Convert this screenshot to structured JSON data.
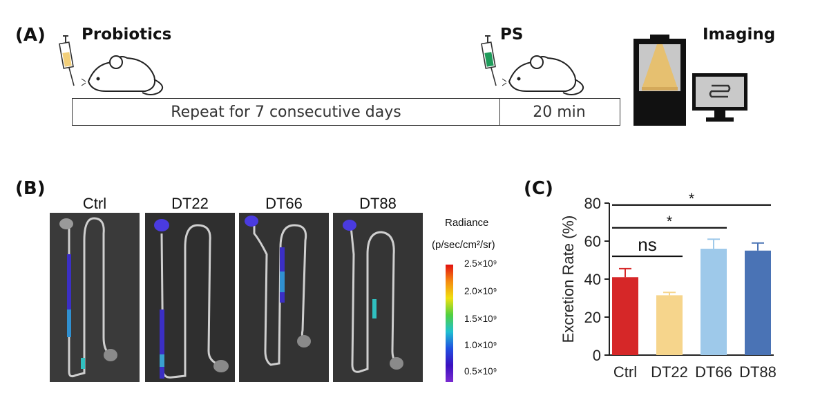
{
  "panel_a": {
    "label": "(A)",
    "steps": {
      "probiotics": "Probiotics",
      "ps": "PS",
      "imaging": "Imaging"
    },
    "timeline": {
      "repeat": "Repeat for 7 consecutive days",
      "duration": "20 min"
    }
  },
  "panel_b": {
    "label": "(B)",
    "groups": [
      "Ctrl",
      "DT22",
      "DT66",
      "DT88"
    ],
    "legend_title_1": "Radiance",
    "legend_title_2": "(p/sec/cm²/sr)",
    "colorbar_ticks": [
      "2.5×10⁹",
      "2.0×10⁹",
      "1.5×10⁹",
      "1.0×10⁹",
      "0.5×10⁹"
    ]
  },
  "chart_data": {
    "type": "bar",
    "panel_label": "(C)",
    "categories": [
      "Ctrl",
      "DT22",
      "DT66",
      "DT88"
    ],
    "values": [
      41,
      31.5,
      56,
      55
    ],
    "errors": [
      4.5,
      1.5,
      5,
      4
    ],
    "colors": [
      "#d62728",
      "#f6d58c",
      "#9ec9ea",
      "#4a73b5"
    ],
    "ylabel": "Excretion Rate (%)",
    "ylim": [
      0,
      80
    ],
    "yticks": [
      0,
      20,
      40,
      60,
      80
    ],
    "significance": [
      {
        "from": "Ctrl",
        "to": "DT22",
        "label": "ns"
      },
      {
        "from": "Ctrl",
        "to": "DT66",
        "label": "*"
      },
      {
        "from": "Ctrl",
        "to": "DT88",
        "label": "*"
      }
    ]
  }
}
